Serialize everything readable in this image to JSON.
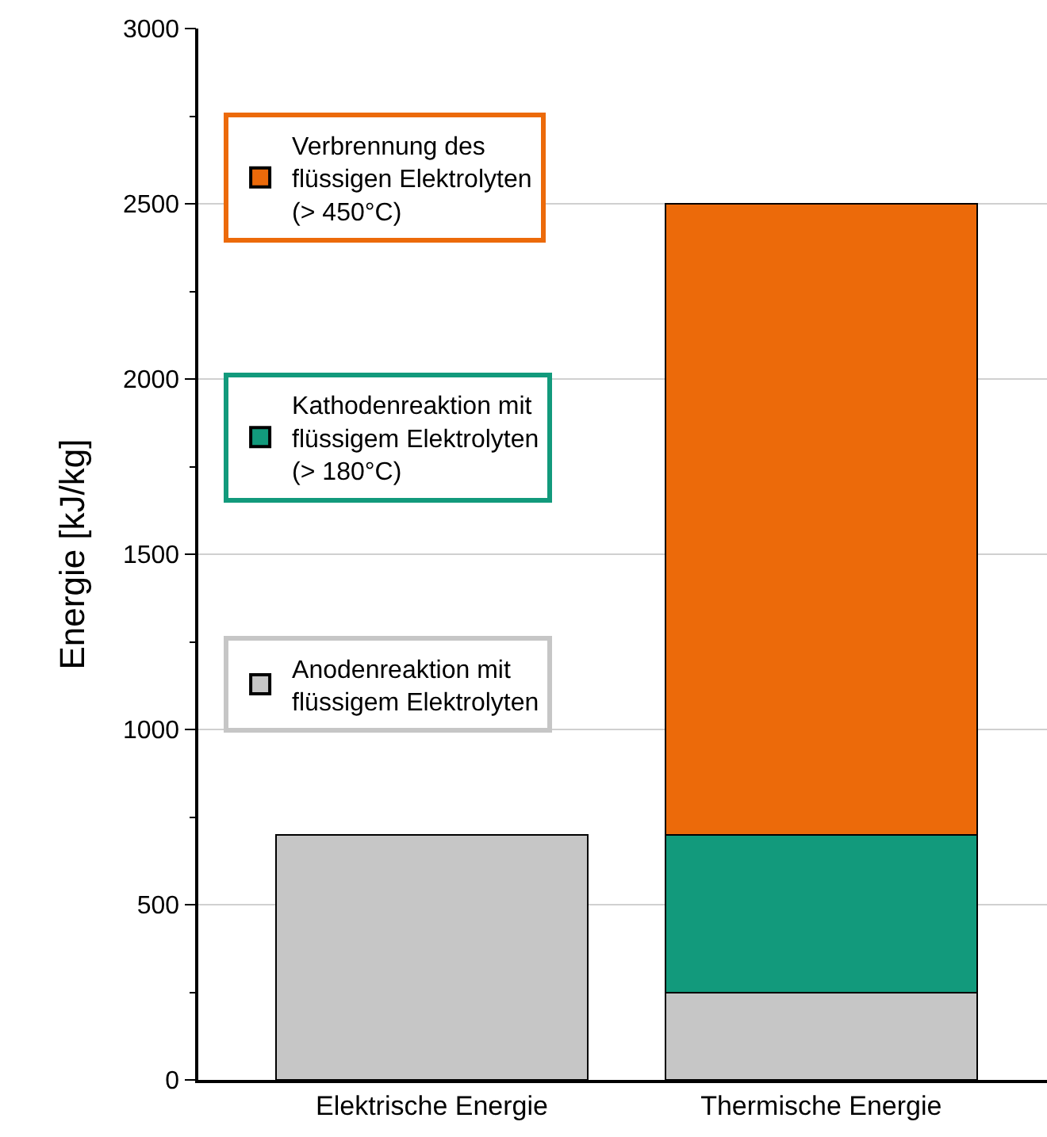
{
  "chart_data": {
    "type": "bar",
    "stacked": true,
    "ylabel": "Energie [kJ/kg]",
    "categories": [
      "Elektrische Energie",
      "Thermische Energie"
    ],
    "series": [
      {
        "color": "#c6c6c6",
        "values": [
          700,
          null
        ]
      },
      {
        "name": "Anodenreaktion mit\nflüssigem Elektrolyten",
        "color": "#c6c6c6",
        "values": [
          null,
          250
        ]
      },
      {
        "name": "Kathodenreaktion mit\nflüssigem Elektrolyten\n(> 180°C)",
        "color": "#129a7c",
        "values": [
          null,
          450
        ]
      },
      {
        "name": "Verbrennung des\nflüssigen Elektrolyten\n(> 450°C)",
        "color": "#ec6a0a",
        "values": [
          null,
          1800
        ]
      }
    ],
    "ylim": [
      0,
      3000
    ],
    "yticks": [
      0,
      500,
      1000,
      1500,
      2000,
      2500,
      3000
    ],
    "grid": "y",
    "legend": "top left"
  }
}
